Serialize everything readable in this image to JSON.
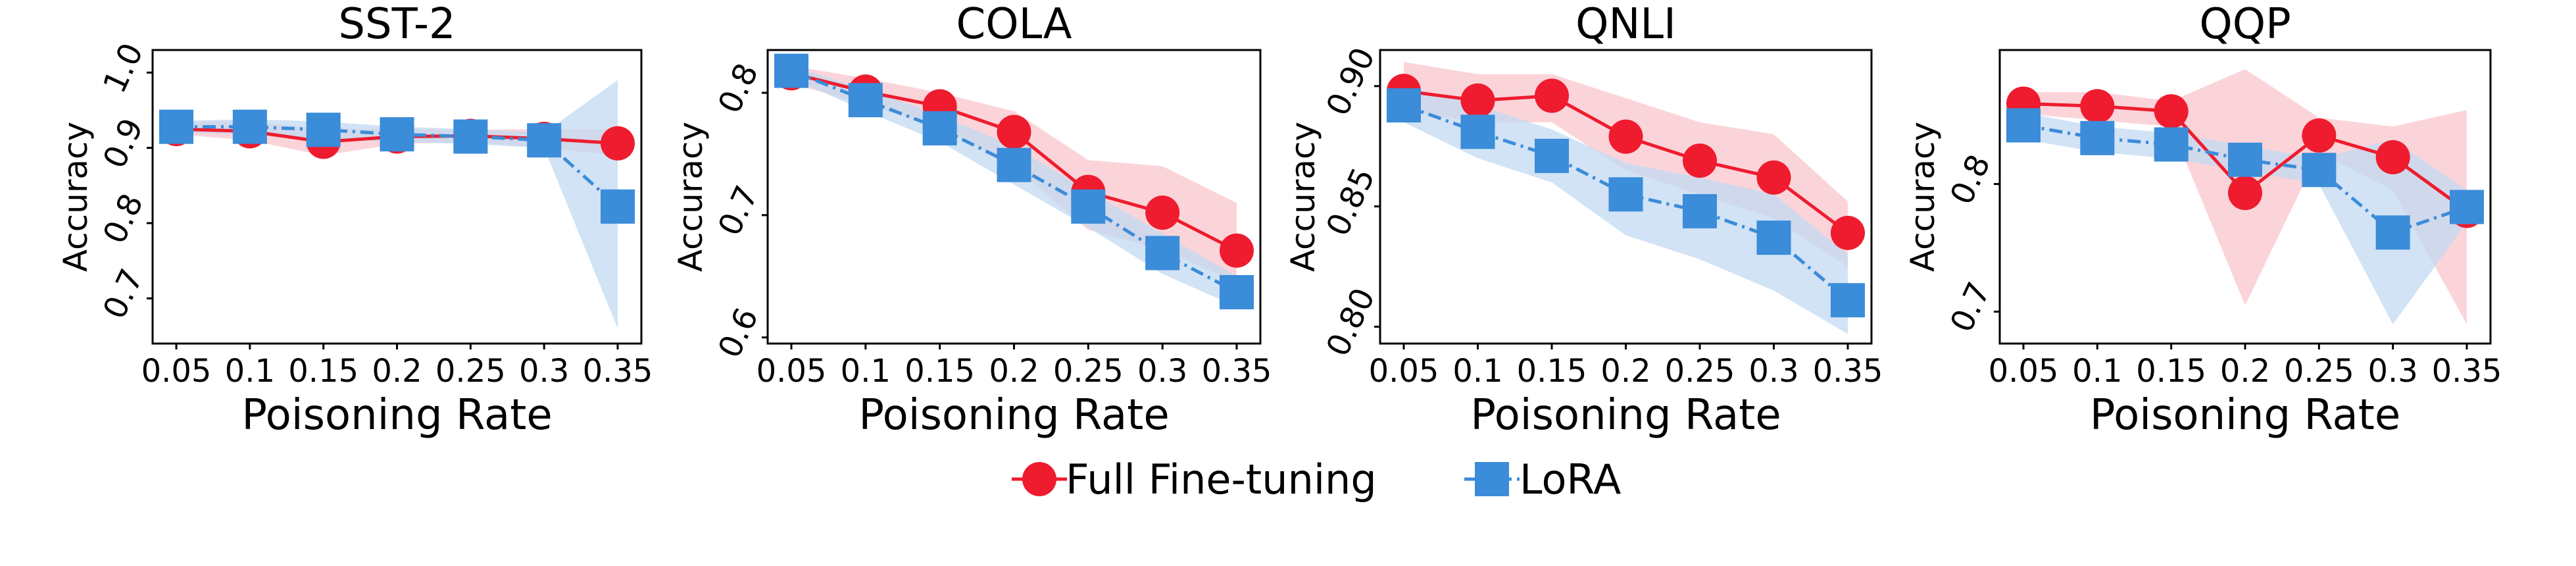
{
  "chart_data": [
    {
      "type": "line",
      "title": "SST-2",
      "xlabel": "Poisoning Rate",
      "ylabel": "Accuracy",
      "x": [
        "0.05",
        "0.1",
        "0.15",
        "0.2",
        "0.25",
        "0.3",
        "0.35"
      ],
      "ylim": [
        0.64,
        1.03
      ],
      "yticks": [
        "0.7",
        "0.8",
        "0.9",
        "1.0"
      ],
      "series": [
        {
          "name": "Full Fine-tuning",
          "values": [
            0.925,
            0.922,
            0.908,
            0.915,
            0.916,
            0.912,
            0.906
          ],
          "band_low": [
            0.918,
            0.91,
            0.89,
            0.905,
            0.908,
            0.9,
            0.89
          ],
          "band_high": [
            0.935,
            0.935,
            0.925,
            0.925,
            0.924,
            0.925,
            0.925
          ]
        },
        {
          "name": "LoRA",
          "values": [
            0.928,
            0.928,
            0.924,
            0.918,
            0.915,
            0.91,
            0.822
          ],
          "band_low": [
            0.92,
            0.918,
            0.912,
            0.908,
            0.905,
            0.9,
            0.66
          ],
          "band_high": [
            0.936,
            0.938,
            0.935,
            0.928,
            0.925,
            0.92,
            0.99
          ]
        }
      ]
    },
    {
      "type": "line",
      "title": "COLA",
      "xlabel": "Poisoning Rate",
      "ylabel": "Accuracy",
      "x": [
        "0.05",
        "0.1",
        "0.15",
        "0.2",
        "0.25",
        "0.3",
        "0.35"
      ],
      "ylim": [
        0.595,
        0.835
      ],
      "yticks": [
        "0.6",
        "0.7",
        "0.8"
      ],
      "series": [
        {
          "name": "Full Fine-tuning",
          "values": [
            0.816,
            0.801,
            0.789,
            0.768,
            0.719,
            0.702,
            0.671
          ],
          "band_low": [
            0.808,
            0.79,
            0.772,
            0.74,
            0.688,
            0.672,
            0.645
          ],
          "band_high": [
            0.822,
            0.812,
            0.8,
            0.785,
            0.745,
            0.74,
            0.71
          ]
        },
        {
          "name": "LoRA",
          "values": [
            0.818,
            0.794,
            0.771,
            0.741,
            0.707,
            0.669,
            0.637
          ],
          "band_low": [
            0.812,
            0.785,
            0.76,
            0.725,
            0.69,
            0.652,
            0.625
          ],
          "band_high": [
            0.822,
            0.803,
            0.782,
            0.756,
            0.72,
            0.685,
            0.65
          ]
        }
      ]
    },
    {
      "type": "line",
      "title": "QNLI",
      "xlabel": "Poisoning Rate",
      "ylabel": "Accuracy",
      "x": [
        "0.05",
        "0.1",
        "0.15",
        "0.2",
        "0.25",
        "0.3",
        "0.35"
      ],
      "ylim": [
        0.793,
        0.915
      ],
      "yticks": [
        "0.80",
        "0.85",
        "0.90"
      ],
      "series": [
        {
          "name": "Full Fine-tuning",
          "values": [
            0.898,
            0.894,
            0.896,
            0.879,
            0.869,
            0.862,
            0.839
          ],
          "band_low": [
            0.89,
            0.885,
            0.885,
            0.865,
            0.855,
            0.845,
            0.825
          ],
          "band_high": [
            0.91,
            0.905,
            0.905,
            0.895,
            0.885,
            0.88,
            0.852
          ]
        },
        {
          "name": "LoRA",
          "values": [
            0.892,
            0.881,
            0.871,
            0.855,
            0.848,
            0.837,
            0.811
          ],
          "band_low": [
            0.885,
            0.87,
            0.86,
            0.838,
            0.828,
            0.815,
            0.797
          ],
          "band_high": [
            0.9,
            0.892,
            0.882,
            0.868,
            0.862,
            0.855,
            0.83
          ]
        }
      ]
    },
    {
      "type": "line",
      "title": "QQP",
      "xlabel": "Poisoning Rate",
      "ylabel": "Accuracy",
      "x": [
        "0.05",
        "0.1",
        "0.15",
        "0.2",
        "0.25",
        "0.3",
        "0.35"
      ],
      "ylim": [
        0.675,
        0.905
      ],
      "yticks": [
        "0.7",
        "0.8"
      ],
      "series": [
        {
          "name": "Full Fine-tuning",
          "values": [
            0.863,
            0.861,
            0.857,
            0.793,
            0.838,
            0.821,
            0.779
          ],
          "band_low": [
            0.855,
            0.85,
            0.845,
            0.705,
            0.825,
            0.795,
            0.69
          ],
          "band_high": [
            0.872,
            0.872,
            0.865,
            0.89,
            0.852,
            0.845,
            0.858
          ]
        },
        {
          "name": "LoRA",
          "values": [
            0.846,
            0.836,
            0.831,
            0.819,
            0.811,
            0.762,
            0.782
          ],
          "band_low": [
            0.835,
            0.825,
            0.82,
            0.81,
            0.8,
            0.69,
            0.77
          ],
          "band_high": [
            0.856,
            0.845,
            0.84,
            0.83,
            0.82,
            0.835,
            0.795
          ]
        }
      ]
    }
  ],
  "legend": {
    "position": "bottom-center",
    "items": [
      {
        "label": "Full Fine-tuning",
        "color": "#ee1c2e",
        "marker": "circle",
        "line": "solid"
      },
      {
        "label": "LoRA",
        "color": "#3b8cd9",
        "marker": "square",
        "line": "dashdot"
      }
    ]
  },
  "colors": {
    "full_line": "#ee1c2e",
    "full_band": "#f9c6cc",
    "lora_line": "#3b8cd9",
    "lora_band": "#c2daf2"
  }
}
